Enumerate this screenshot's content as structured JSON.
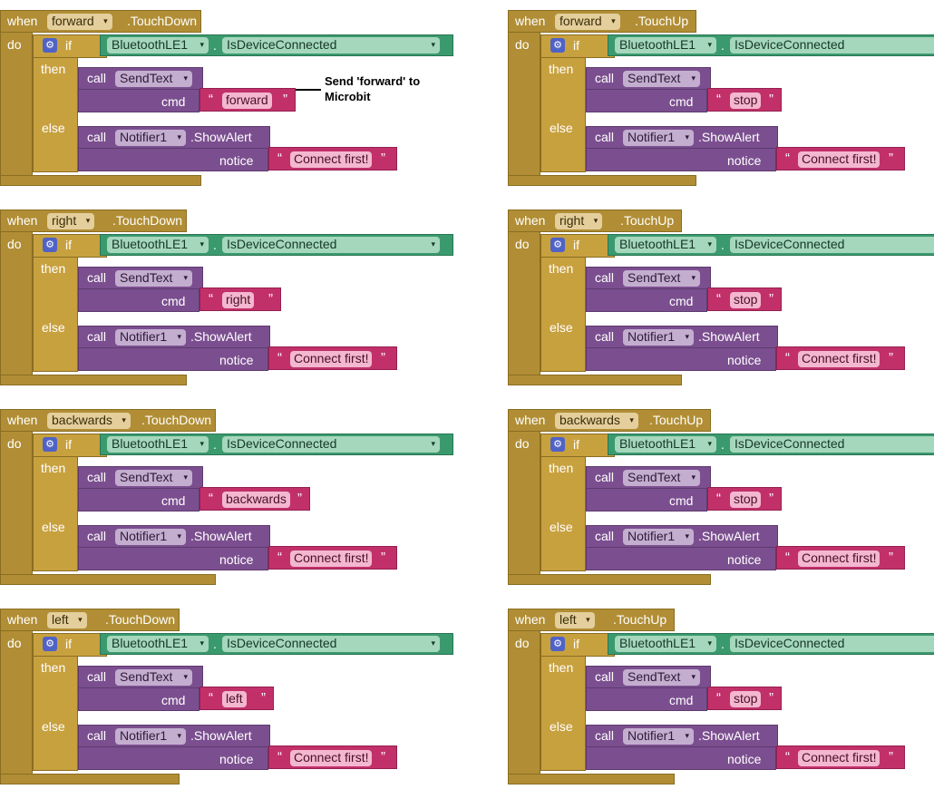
{
  "blocks": [
    {
      "when": "when",
      "component": "forward",
      "event": ".TouchDown",
      "cmd": "forward"
    },
    {
      "when": "when",
      "component": "forward",
      "event": ".TouchUp",
      "cmd": "stop"
    },
    {
      "when": "when",
      "component": "right",
      "event": ".TouchDown",
      "cmd": "right"
    },
    {
      "when": "when",
      "component": "right",
      "event": ".TouchUp",
      "cmd": "stop"
    },
    {
      "when": "when",
      "component": "backwards",
      "event": ".TouchDown",
      "cmd": "backwards"
    },
    {
      "when": "when",
      "component": "backwards",
      "event": ".TouchUp",
      "cmd": "stop"
    },
    {
      "when": "when",
      "component": "left",
      "event": ".TouchDown",
      "cmd": "left"
    },
    {
      "when": "when",
      "component": "left",
      "event": ".TouchUp",
      "cmd": "stop"
    }
  ],
  "labels": {
    "do": "do",
    "if": "if",
    "then": "then",
    "else": "else",
    "call": "call",
    "cmd": "cmd",
    "notice": "notice",
    "bluetooth": "BluetoothLE1",
    "is_connected": "IsDeviceConnected",
    "send_text": "SendText",
    "notifier": "Notifier1",
    "show_alert": ".ShowAlert",
    "connect_first": "Connect first!",
    "dot": "."
  },
  "annotation": {
    "line1": "Send  'forward' to",
    "line2": "Microbit"
  },
  "colors": {
    "event": "#b18e35",
    "control": "#c8a13f",
    "component": "#3a9a6e",
    "call": "#7b4f8f",
    "text": "#c2306a",
    "mutator": "#4f62c6"
  }
}
